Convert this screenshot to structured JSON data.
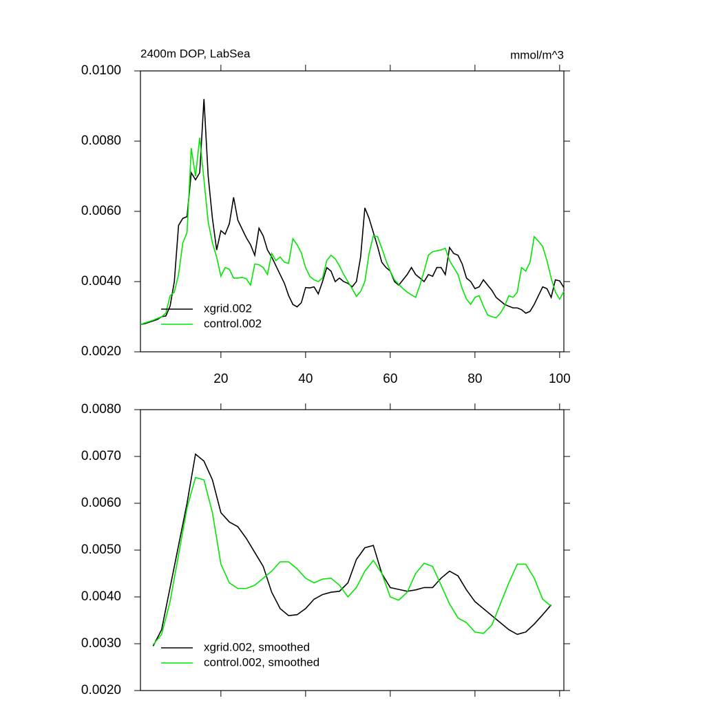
{
  "chart_data": [
    {
      "type": "line",
      "title": "2400m DOP, LabSea",
      "subtitle": "mmol/m^3",
      "x": [
        1,
        2,
        3,
        4,
        5,
        6,
        7,
        8,
        9,
        10,
        11,
        12,
        13,
        14,
        15,
        16,
        17,
        18,
        19,
        20,
        21,
        22,
        23,
        24,
        25,
        26,
        27,
        28,
        29,
        30,
        31,
        32,
        33,
        34,
        35,
        36,
        37,
        38,
        39,
        40,
        41,
        42,
        43,
        44,
        45,
        46,
        47,
        48,
        49,
        50,
        51,
        52,
        53,
        54,
        55,
        56,
        57,
        58,
        59,
        60,
        61,
        62,
        63,
        64,
        65,
        66,
        67,
        68,
        69,
        70,
        71,
        72,
        73,
        74,
        75,
        76,
        77,
        78,
        79,
        80,
        81,
        82,
        83,
        84,
        85,
        86,
        87,
        88,
        89,
        90,
        91,
        92,
        93,
        94,
        95,
        96,
        97,
        98,
        99,
        100,
        101
      ],
      "series": [
        {
          "name": "xgrid.002",
          "color": "#000000",
          "values": [
            0.00278,
            0.0028,
            0.00284,
            0.00288,
            0.00292,
            0.003,
            0.00302,
            0.0033,
            0.004,
            0.0056,
            0.0058,
            0.00585,
            0.0071,
            0.0069,
            0.0071,
            0.0092,
            0.007,
            0.0058,
            0.0049,
            0.00545,
            0.00535,
            0.00565,
            0.0064,
            0.00575,
            0.0055,
            0.00525,
            0.00505,
            0.00475,
            0.00552,
            0.0053,
            0.0049,
            0.0047,
            0.00445,
            0.0042,
            0.00395,
            0.0036,
            0.00335,
            0.00328,
            0.0034,
            0.00383,
            0.00382,
            0.00385,
            0.00365,
            0.004,
            0.0044,
            0.0043,
            0.004,
            0.0041,
            0.004,
            0.00395,
            0.00385,
            0.004,
            0.0047,
            0.0061,
            0.0058,
            0.0054,
            0.005,
            0.00455,
            0.0044,
            0.0043,
            0.004,
            0.0039,
            0.00405,
            0.0042,
            0.0044,
            0.0042,
            0.0041,
            0.004,
            0.0042,
            0.00415,
            0.0044,
            0.0044,
            0.0042,
            0.00497,
            0.0048,
            0.00475,
            0.0045,
            0.0041,
            0.004,
            0.0038,
            0.00385,
            0.00405,
            0.0039,
            0.00375,
            0.00355,
            0.00345,
            0.00335,
            0.0033,
            0.00325,
            0.00325,
            0.0032,
            0.0031,
            0.00315,
            0.00335,
            0.0036,
            0.00385,
            0.0038,
            0.00355,
            0.00405,
            0.00402,
            0.00383
          ]
        },
        {
          "name": "control.002",
          "color": "#00e600",
          "values": [
            0.00278,
            0.00282,
            0.00286,
            0.0029,
            0.00295,
            0.003,
            0.0031,
            0.0036,
            0.0037,
            0.0042,
            0.0051,
            0.0054,
            0.0078,
            0.007,
            0.0081,
            0.0069,
            0.0057,
            0.0051,
            0.0047,
            0.00415,
            0.0044,
            0.00435,
            0.0041,
            0.0041,
            0.00412,
            0.00408,
            0.0039,
            0.0045,
            0.00448,
            0.0044,
            0.0042,
            0.0048,
            0.0046,
            0.0047,
            0.00455,
            0.00452,
            0.00522,
            0.00505,
            0.00482,
            0.0044,
            0.00415,
            0.00405,
            0.004,
            0.0041,
            0.0046,
            0.00475,
            0.00465,
            0.00445,
            0.0042,
            0.004,
            0.0038,
            0.00358,
            0.00372,
            0.004,
            0.0048,
            0.0053,
            0.00528,
            0.00495,
            0.0046,
            0.0043,
            0.00405,
            0.00392,
            0.0038,
            0.0037,
            0.00362,
            0.00355,
            0.0039,
            0.0043,
            0.00475,
            0.00485,
            0.00488,
            0.0049,
            0.00495,
            0.0046,
            0.0044,
            0.0042,
            0.0038,
            0.0035,
            0.00335,
            0.00355,
            0.0036,
            0.0033,
            0.00305,
            0.003,
            0.00297,
            0.0031,
            0.0033,
            0.0036,
            0.00355,
            0.0037,
            0.0044,
            0.0043,
            0.00455,
            0.00528,
            0.00515,
            0.005,
            0.0046,
            0.0041,
            0.0037,
            0.0035,
            0.00372
          ]
        }
      ],
      "xlim": [
        1,
        101
      ],
      "xticks": [
        20,
        40,
        60,
        80,
        100
      ],
      "xtick_labels": true,
      "ylim": [
        0.002,
        0.01
      ],
      "yticks": [
        {
          "value": 0.002,
          "label": "0.0020"
        },
        {
          "value": 0.004,
          "label": "0.0040"
        },
        {
          "value": 0.006,
          "label": "0.0060"
        },
        {
          "value": 0.008,
          "label": "0.0080"
        },
        {
          "value": 0.01,
          "label": "0.0100"
        }
      ],
      "legend": "lower left"
    },
    {
      "type": "line",
      "x": [
        4,
        6,
        8,
        10,
        12,
        14,
        16,
        18,
        20,
        22,
        24,
        26,
        28,
        30,
        32,
        34,
        36,
        38,
        40,
        42,
        44,
        46,
        48,
        50,
        52,
        54,
        56,
        58,
        60,
        62,
        64,
        66,
        68,
        70,
        72,
        74,
        76,
        78,
        80,
        82,
        84,
        86,
        88,
        90,
        92,
        94,
        96,
        98
      ],
      "series": [
        {
          "name": "xgrid.002, smoothed",
          "color": "#000000",
          "values": [
            0.00295,
            0.0033,
            0.0042,
            0.0051,
            0.006,
            0.00705,
            0.0069,
            0.0065,
            0.0058,
            0.0056,
            0.0055,
            0.00525,
            0.00495,
            0.00465,
            0.0041,
            0.00375,
            0.0036,
            0.00362,
            0.00375,
            0.00395,
            0.00405,
            0.0041,
            0.00412,
            0.0043,
            0.0048,
            0.00505,
            0.0051,
            0.0045,
            0.0042,
            0.00416,
            0.00412,
            0.00415,
            0.0042,
            0.0042,
            0.0044,
            0.00455,
            0.00445,
            0.00415,
            0.0039,
            0.00375,
            0.0036,
            0.00345,
            0.0033,
            0.0032,
            0.00325,
            0.00342,
            0.00362,
            0.00383
          ]
        },
        {
          "name": "control.002, smoothed",
          "color": "#00e600",
          "values": [
            0.00298,
            0.0032,
            0.0039,
            0.0049,
            0.0059,
            0.00655,
            0.0065,
            0.0058,
            0.0047,
            0.0043,
            0.00418,
            0.00418,
            0.00425,
            0.0044,
            0.00455,
            0.00475,
            0.00475,
            0.0046,
            0.0044,
            0.0043,
            0.00438,
            0.0044,
            0.00425,
            0.004,
            0.0042,
            0.00455,
            0.00478,
            0.0045,
            0.004,
            0.00393,
            0.0041,
            0.0045,
            0.00472,
            0.00465,
            0.00425,
            0.00385,
            0.00355,
            0.00345,
            0.00325,
            0.00322,
            0.0034,
            0.00385,
            0.0043,
            0.0047,
            0.0047,
            0.0044,
            0.00395,
            0.0038
          ]
        }
      ],
      "xlim": [
        1,
        101
      ],
      "xticks": [
        20,
        40,
        60,
        80,
        100
      ],
      "xtick_labels": false,
      "ylim": [
        0.002,
        0.008
      ],
      "yticks": [
        {
          "value": 0.002,
          "label": "0.0020"
        },
        {
          "value": 0.003,
          "label": "0.0030"
        },
        {
          "value": 0.004,
          "label": "0.0040"
        },
        {
          "value": 0.005,
          "label": "0.0050"
        },
        {
          "value": 0.006,
          "label": "0.0060"
        },
        {
          "value": 0.007,
          "label": "0.0070"
        },
        {
          "value": 0.008,
          "label": "0.0080"
        }
      ],
      "legend": "lower left"
    }
  ]
}
